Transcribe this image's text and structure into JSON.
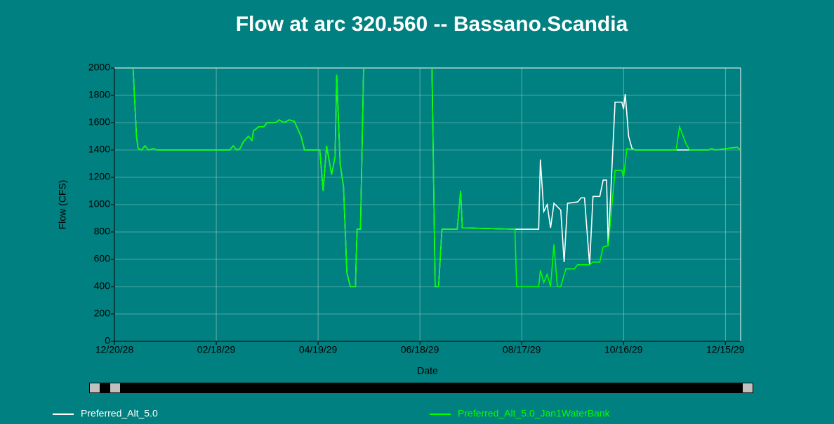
{
  "chart_data": {
    "type": "line",
    "title": "Flow at arc 320.560 -- Bassano.Scandia",
    "x_label": "Date",
    "y_label": "Flow (CFS)",
    "xlim": [
      "12/20/28",
      "12/24/29"
    ],
    "xticks": [
      "12/20/28",
      "02/18/29",
      "04/19/29",
      "06/18/29",
      "08/17/29",
      "10/16/29",
      "12/15/29"
    ],
    "ylim": [
      0,
      2000
    ],
    "yticks": [
      0,
      200,
      400,
      600,
      800,
      1000,
      1200,
      1400,
      1600,
      1800,
      2000
    ],
    "grid": true,
    "series": [
      {
        "name": "Preferred_Alt_5.0",
        "color": "#ffffff",
        "x": [
          "12/31/28",
          "01/02/29",
          "01/03/29",
          "01/05/29",
          "01/07/29",
          "01/09/29",
          "01/12/29",
          "01/14/29",
          "02/26/29",
          "02/28/29",
          "03/02/29",
          "03/04/29",
          "03/06/29",
          "03/09/29",
          "03/11/29",
          "03/12/29",
          "03/15/29",
          "03/18/29",
          "03/20/29",
          "03/25/29",
          "03/27/29",
          "03/30/29",
          "04/02/29",
          "04/05/29",
          "04/09/29",
          "04/11/29",
          "04/20/29",
          "04/22/29",
          "04/24/29",
          "04/27/29",
          "04/29/29",
          "04/30/29",
          "05/02/29",
          "05/04/29",
          "05/06/29",
          "05/08/29",
          "05/11/29",
          "05/12/29",
          "05/14/29",
          "05/16/29",
          "06/01/29",
          "06/25/29",
          "06/27/29",
          "06/29/29",
          "07/01/29",
          "07/10/29",
          "07/12/29",
          "07/13/29",
          "08/13/29",
          "08/27/29",
          "08/28/29",
          "08/30/29",
          "09/01/29",
          "09/03/29",
          "09/05/29",
          "09/09/29",
          "09/11/29",
          "09/13/29",
          "09/19/29",
          "09/21/29",
          "09/23/29",
          "09/26/29",
          "09/28/29",
          "10/02/29",
          "10/04/29",
          "10/06/29",
          "10/07/29",
          "10/11/29",
          "10/15/29",
          "10/16/29",
          "10/17/29",
          "10/19/29",
          "10/21/29",
          "10/23/29",
          "11/16/29",
          "12/05/29",
          "12/07/29",
          "12/09/29",
          "12/22/29",
          "12/24/29"
        ],
        "values": [
          2000,
          1500,
          1410,
          1400,
          1430,
          1400,
          1410,
          1400,
          1400,
          1430,
          1400,
          1410,
          1460,
          1500,
          1470,
          1540,
          1570,
          1570,
          1600,
          1600,
          1620,
          1600,
          1620,
          1610,
          1500,
          1400,
          1400,
          1100,
          1430,
          1220,
          1350,
          1950,
          1300,
          1130,
          500,
          400,
          400,
          820,
          820,
          2100,
          null,
          2100,
          400,
          400,
          820,
          820,
          1100,
          830,
          820,
          820,
          1330,
          950,
          1000,
          830,
          1010,
          960,
          580,
          1010,
          1020,
          1050,
          1050,
          560,
          1060,
          1060,
          1180,
          1180,
          700,
          1750,
          1750,
          1700,
          1810,
          1500,
          1410,
          1400,
          1400,
          1400,
          1410,
          1400,
          1420,
          1400
        ]
      },
      {
        "name": "Preferred_Alt_5.0_Jan1WaterBank",
        "color": "#00ff00",
        "x": [
          "12/31/28",
          "01/02/29",
          "01/03/29",
          "01/05/29",
          "01/07/29",
          "01/09/29",
          "01/12/29",
          "01/14/29",
          "02/26/29",
          "02/28/29",
          "03/02/29",
          "03/04/29",
          "03/06/29",
          "03/09/29",
          "03/11/29",
          "03/12/29",
          "03/15/29",
          "03/18/29",
          "03/20/29",
          "03/25/29",
          "03/27/29",
          "03/30/29",
          "04/02/29",
          "04/05/29",
          "04/09/29",
          "04/11/29",
          "04/20/29",
          "04/22/29",
          "04/24/29",
          "04/27/29",
          "04/29/29",
          "04/30/29",
          "05/02/29",
          "05/04/29",
          "05/06/29",
          "05/08/29",
          "05/11/29",
          "05/12/29",
          "05/14/29",
          "05/16/29",
          "06/01/29",
          "06/25/29",
          "06/27/29",
          "06/29/29",
          "07/01/29",
          "07/10/29",
          "07/12/29",
          "07/13/29",
          "08/13/29",
          "08/14/29",
          "08/27/29",
          "08/28/29",
          "08/30/29",
          "09/01/29",
          "09/03/29",
          "09/05/29",
          "09/07/29",
          "09/09/29",
          "09/12/29",
          "09/17/29",
          "09/19/29",
          "09/26/29",
          "09/28/29",
          "10/02/29",
          "10/04/29",
          "10/07/29",
          "10/11/29",
          "10/15/29",
          "10/16/29",
          "10/18/29",
          "10/23/29",
          "11/16/29",
          "11/18/29",
          "11/22/29",
          "11/24/29",
          "12/05/29",
          "12/07/29",
          "12/09/29",
          "12/22/29",
          "12/24/29"
        ],
        "values": [
          2000,
          1500,
          1410,
          1400,
          1430,
          1400,
          1410,
          1400,
          1400,
          1430,
          1400,
          1410,
          1460,
          1500,
          1470,
          1540,
          1570,
          1570,
          1600,
          1600,
          1620,
          1600,
          1620,
          1610,
          1500,
          1400,
          1400,
          1100,
          1430,
          1220,
          1350,
          1950,
          1300,
          1130,
          500,
          400,
          400,
          820,
          820,
          2100,
          null,
          2100,
          400,
          400,
          820,
          820,
          1100,
          830,
          820,
          400,
          400,
          520,
          430,
          490,
          400,
          710,
          400,
          400,
          530,
          530,
          560,
          560,
          580,
          580,
          690,
          700,
          1250,
          1250,
          1200,
          1410,
          1400,
          1400,
          1570,
          1440,
          1400,
          1400,
          1410,
          1400,
          1420,
          1400
        ]
      }
    ]
  }
}
